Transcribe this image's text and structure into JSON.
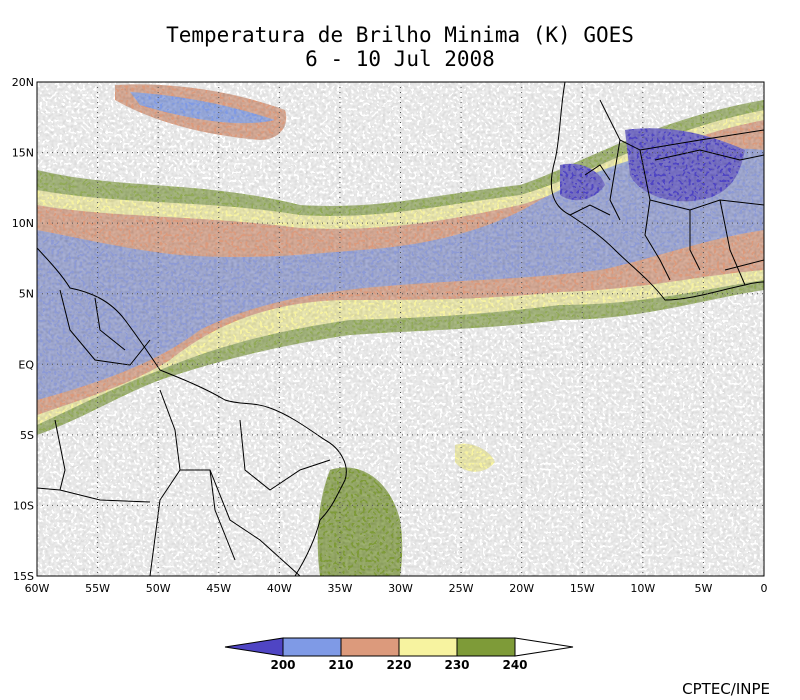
{
  "title": {
    "line1": "Temperatura de Brilho Minima (K) GOES",
    "line2": "6 - 10 Jul 2008"
  },
  "map": {
    "lat_labels": [
      "20N",
      "15N",
      "10N",
      "5N",
      "EQ",
      "5S",
      "10S",
      "15S"
    ],
    "lat_values": [
      20,
      15,
      10,
      5,
      0,
      -5,
      -10,
      -15
    ],
    "lon_labels": [
      "60W",
      "55W",
      "50W",
      "45W",
      "40W",
      "35W",
      "30W",
      "25W",
      "20W",
      "15W",
      "10W",
      "5W",
      "0"
    ],
    "lon_values": [
      -60,
      -55,
      -50,
      -45,
      -40,
      -35,
      -30,
      -25,
      -20,
      -15,
      -10,
      -5,
      0
    ],
    "extent": {
      "lon": [
        -60,
        0
      ],
      "lat": [
        -15,
        20
      ]
    }
  },
  "colorbar": {
    "labels": [
      "200",
      "210",
      "220",
      "230",
      "240"
    ],
    "colors": [
      "#4f45c4",
      "#7f9ae6",
      "#dc9a7c",
      "#f7f3a0",
      "#7e9b38"
    ]
  },
  "credit": "CPTEC/INPE"
}
